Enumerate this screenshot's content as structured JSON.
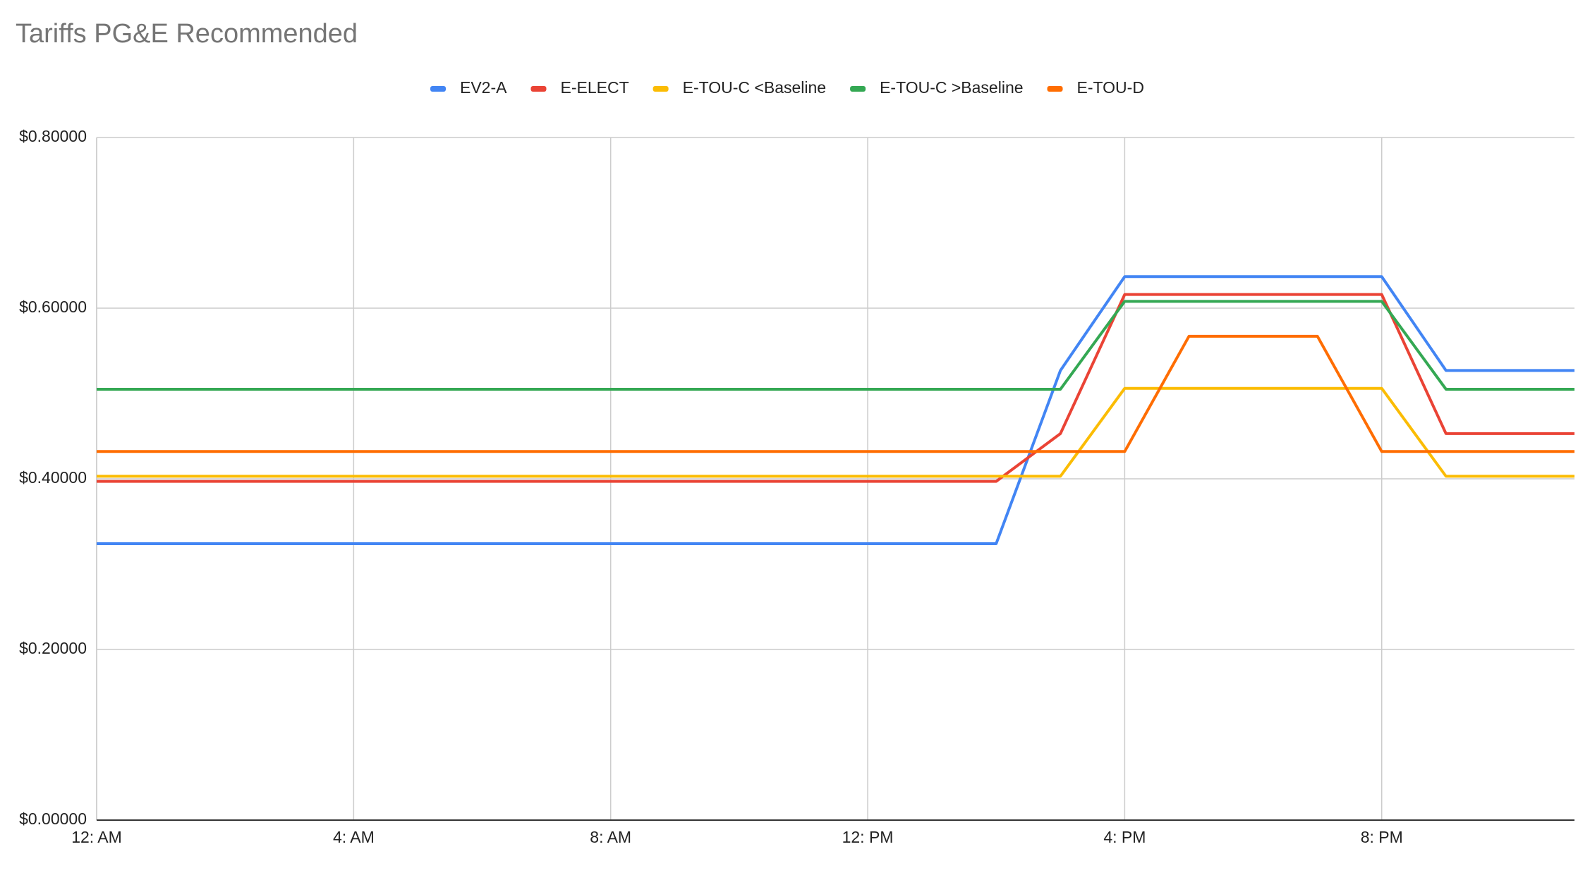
{
  "chart_data": {
    "type": "line",
    "title": "Tariffs PG&E Recommended",
    "categories": [
      "12: AM",
      null,
      null,
      null,
      "4: AM",
      null,
      null,
      null,
      "8: AM",
      null,
      null,
      null,
      "12: PM",
      null,
      null,
      null,
      "4: PM",
      null,
      null,
      null,
      "8: PM",
      null,
      null,
      null
    ],
    "series": [
      {
        "name": "EV2-A",
        "color": "#4285f4",
        "values": [
          0.324,
          0.324,
          0.324,
          0.324,
          0.324,
          0.324,
          0.324,
          0.324,
          0.324,
          0.324,
          0.324,
          0.324,
          0.324,
          0.324,
          0.324,
          0.527,
          0.637,
          0.637,
          0.637,
          0.637,
          0.637,
          0.527,
          0.527,
          0.527
        ]
      },
      {
        "name": "E-ELECT",
        "color": "#ea4335",
        "values": [
          0.397,
          0.397,
          0.397,
          0.397,
          0.397,
          0.397,
          0.397,
          0.397,
          0.397,
          0.397,
          0.397,
          0.397,
          0.397,
          0.397,
          0.397,
          0.453,
          0.616,
          0.616,
          0.616,
          0.616,
          0.616,
          0.453,
          0.453,
          0.453
        ]
      },
      {
        "name": "E-TOU-C <Baseline",
        "color": "#fbbc04",
        "values": [
          0.403,
          0.403,
          0.403,
          0.403,
          0.403,
          0.403,
          0.403,
          0.403,
          0.403,
          0.403,
          0.403,
          0.403,
          0.403,
          0.403,
          0.403,
          0.403,
          0.506,
          0.506,
          0.506,
          0.506,
          0.506,
          0.403,
          0.403,
          0.403
        ]
      },
      {
        "name": "E-TOU-C >Baseline",
        "color": "#34a853",
        "values": [
          0.505,
          0.505,
          0.505,
          0.505,
          0.505,
          0.505,
          0.505,
          0.505,
          0.505,
          0.505,
          0.505,
          0.505,
          0.505,
          0.505,
          0.505,
          0.505,
          0.608,
          0.608,
          0.608,
          0.608,
          0.608,
          0.505,
          0.505,
          0.505
        ]
      },
      {
        "name": "E-TOU-D",
        "color": "#ff6d01",
        "values": [
          0.432,
          0.432,
          0.432,
          0.432,
          0.432,
          0.432,
          0.432,
          0.432,
          0.432,
          0.432,
          0.432,
          0.432,
          0.432,
          0.432,
          0.432,
          0.432,
          0.432,
          0.567,
          0.567,
          0.567,
          0.432,
          0.432,
          0.432,
          0.432
        ]
      }
    ],
    "ylim": [
      0,
      0.8
    ],
    "yticks": [
      {
        "value": 0,
        "label": "$0.00000"
      },
      {
        "value": 0.2,
        "label": "$0.20000"
      },
      {
        "value": 0.4,
        "label": "$0.40000"
      },
      {
        "value": 0.6,
        "label": "$0.60000"
      },
      {
        "value": 0.8,
        "label": "$0.80000"
      }
    ],
    "grid": true,
    "legend": "top"
  }
}
